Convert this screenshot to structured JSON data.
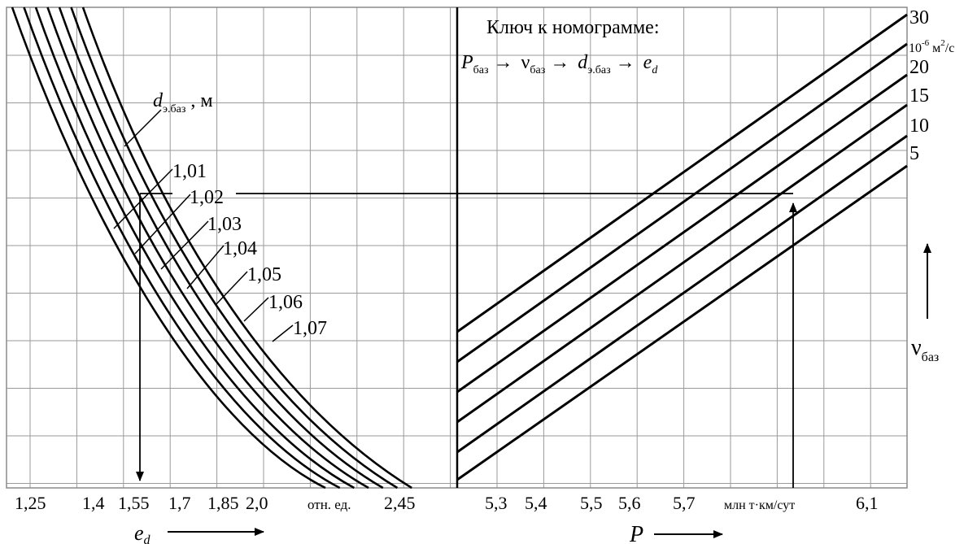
{
  "key": {
    "title": "Ключ к номограмме:",
    "chain": [
      {
        "main": "P",
        "sub": "баз"
      },
      {
        "main": "ν",
        "sub": "баз"
      },
      {
        "main": "d",
        "sub": "э.баз"
      },
      {
        "main": "e",
        "sub": "d"
      }
    ],
    "arrow": "→"
  },
  "chart_data": [
    {
      "type": "line",
      "name": "left-panel",
      "curve_family_label": {
        "main": "d",
        "sub": "э.баз",
        "suffix": " , м"
      },
      "series": [
        {
          "name": "1,01"
        },
        {
          "name": "1,02"
        },
        {
          "name": "1,03"
        },
        {
          "name": "1,04"
        },
        {
          "name": "1,05"
        },
        {
          "name": "1,06"
        },
        {
          "name": "1,07"
        }
      ],
      "x_tick_labels": [
        "1,25",
        "1,4",
        "1,55",
        "1,7",
        "1,85",
        "2,0",
        "отн. ед.",
        "2,45"
      ],
      "xlabel": {
        "main": "e",
        "sub": "d"
      },
      "grid": true
    },
    {
      "type": "line",
      "name": "right-panel",
      "series": [
        {
          "name": "30"
        },
        {
          "name": "20"
        },
        {
          "name": "15"
        },
        {
          "name": "10"
        },
        {
          "name": "5"
        }
      ],
      "y_unit": {
        "prefix": "10",
        "exp": "-6",
        "unit": " м",
        "unit_exp": "2",
        "tail": "/с"
      },
      "ylabel": {
        "main": "ν",
        "sub": "баз"
      },
      "x_tick_labels": [
        "5,3",
        "5,4",
        "5,5",
        "5,6",
        "5,7",
        "млн т·км/сут",
        "6,1"
      ],
      "xlabel": "P",
      "grid": true
    }
  ]
}
